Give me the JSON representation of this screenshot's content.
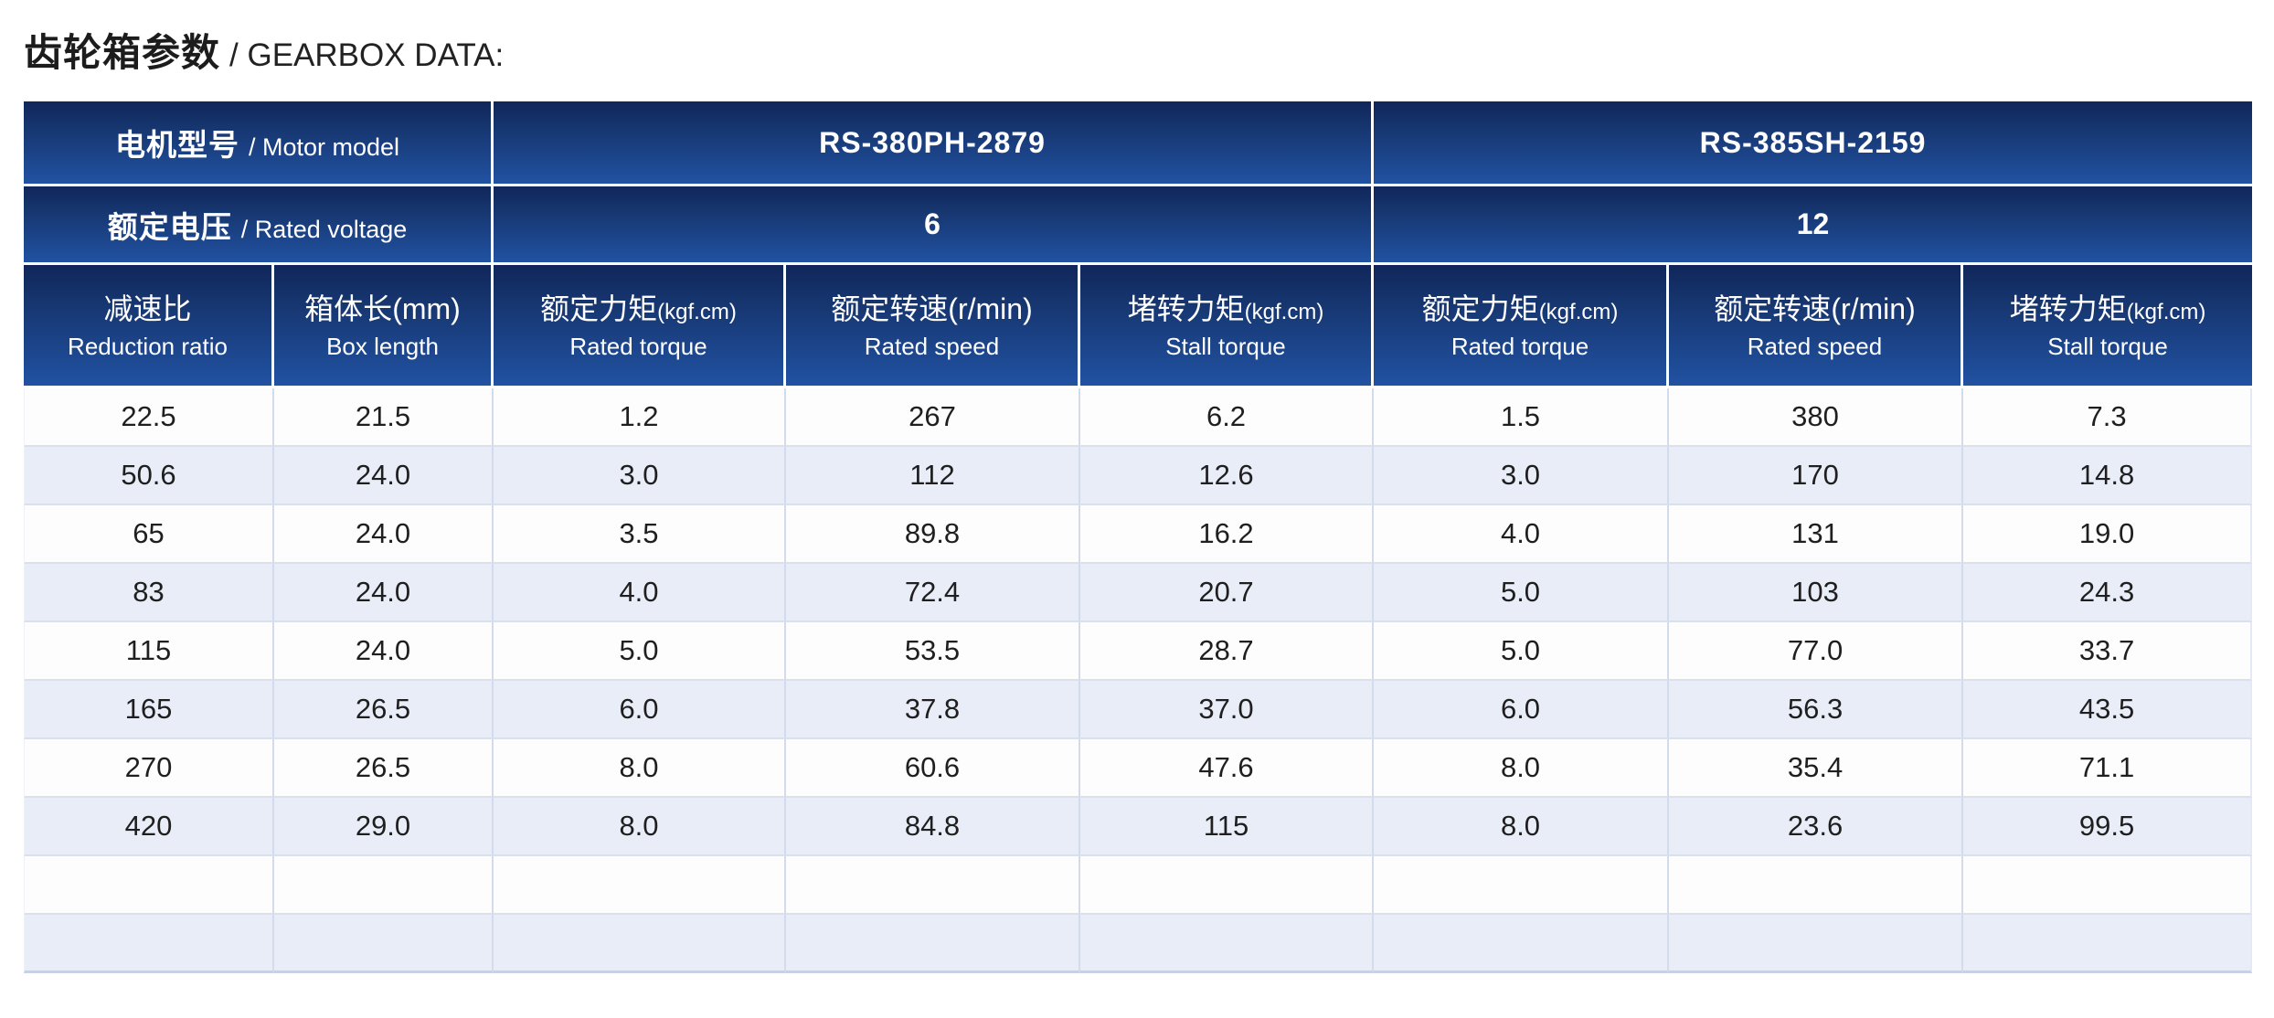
{
  "page": {
    "title_zh": "齿轮箱参数",
    "title_en": "/ GEARBOX DATA:"
  },
  "colors": {
    "header_blue_top": "#10265a",
    "header_blue_bottom": "#2152a2",
    "header_text": "#ffffff",
    "alt_row_blue": "#e8edf7",
    "row_white": "#fdfdfe",
    "grid_line": "#d3dcec",
    "data_text": "#1f1f1f"
  },
  "table": {
    "motor_row": {
      "label_zh": "电机型号",
      "label_en": "/ Motor model",
      "models": [
        "RS-380PH-2879",
        "RS-385SH-2159"
      ]
    },
    "voltage_row": {
      "label_zh": "额定电压",
      "label_en": "/ Rated voltage",
      "values": [
        "6",
        "12"
      ]
    },
    "columns": [
      {
        "zh": "减速比",
        "unit": "",
        "big_unit": false,
        "en": "Reduction ratio"
      },
      {
        "zh": "箱体长",
        "unit": "(mm)",
        "big_unit": true,
        "en": "Box length"
      },
      {
        "zh": "额定力矩",
        "unit": "(kgf.cm)",
        "big_unit": false,
        "en": "Rated torque"
      },
      {
        "zh": "额定转速",
        "unit": "(r/min)",
        "big_unit": true,
        "en": "Rated speed"
      },
      {
        "zh": "堵转力矩",
        "unit": "(kgf.cm)",
        "big_unit": false,
        "en": "Stall torque"
      },
      {
        "zh": "额定力矩",
        "unit": "(kgf.cm)",
        "big_unit": false,
        "en": "Rated torque"
      },
      {
        "zh": "额定转速",
        "unit": "(r/min)",
        "big_unit": true,
        "en": "Rated speed"
      },
      {
        "zh": "堵转力矩",
        "unit": "(kgf.cm)",
        "big_unit": false,
        "en": "Stall torque"
      }
    ],
    "rows": [
      [
        "22.5",
        "21.5",
        "1.2",
        "267",
        "6.2",
        "1.5",
        "380",
        "7.3"
      ],
      [
        "50.6",
        "24.0",
        "3.0",
        "112",
        "12.6",
        "3.0",
        "170",
        "14.8"
      ],
      [
        "65",
        "24.0",
        "3.5",
        "89.8",
        "16.2",
        "4.0",
        "131",
        "19.0"
      ],
      [
        "83",
        "24.0",
        "4.0",
        "72.4",
        "20.7",
        "5.0",
        "103",
        "24.3"
      ],
      [
        "115",
        "24.0",
        "5.0",
        "53.5",
        "28.7",
        "5.0",
        "77.0",
        "33.7"
      ],
      [
        "165",
        "26.5",
        "6.0",
        "37.8",
        "37.0",
        "6.0",
        "56.3",
        "43.5"
      ],
      [
        "270",
        "26.5",
        "8.0",
        "60.6",
        "47.6",
        "8.0",
        "35.4",
        "71.1"
      ],
      [
        "420",
        "29.0",
        "8.0",
        "84.8",
        "115",
        "8.0",
        "23.6",
        "99.5"
      ],
      [
        "",
        "",
        "",
        "",
        "",
        "",
        "",
        ""
      ],
      [
        "",
        "",
        "",
        "",
        "",
        "",
        "",
        ""
      ]
    ]
  }
}
